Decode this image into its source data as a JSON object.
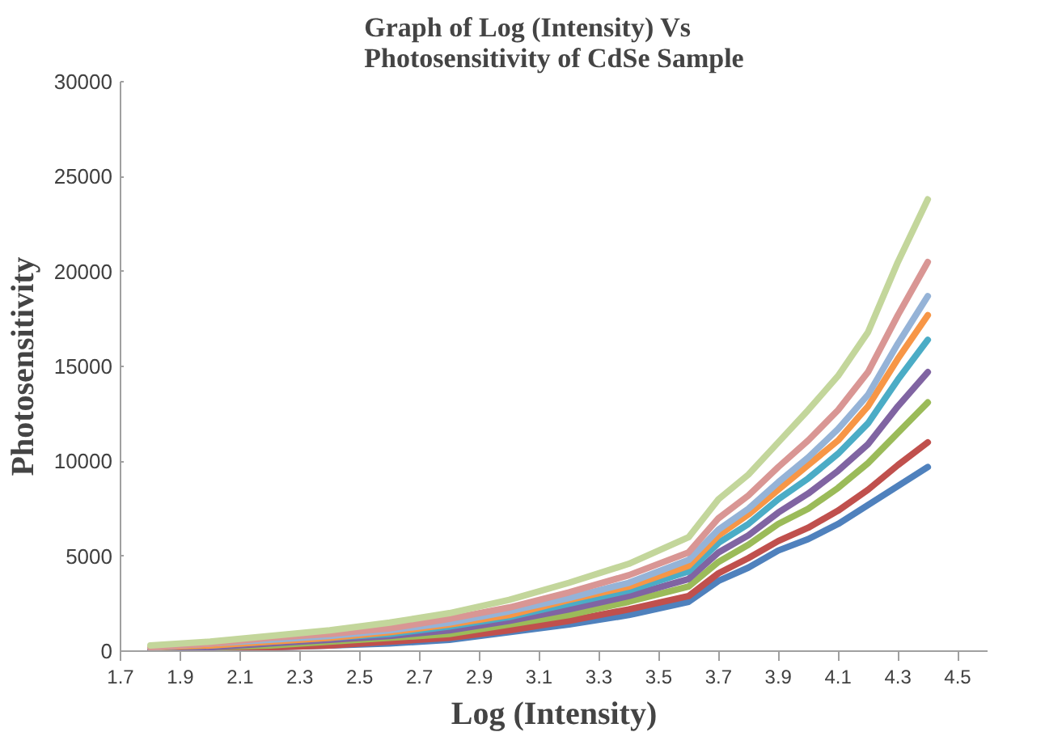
{
  "chart_data": {
    "type": "line",
    "title": "Graph of Log (Intensity) Vs\nPhotosensitivity of CdSe Sample",
    "xlabel": "Log (Intensity)",
    "ylabel": "Photosensitivity",
    "x": [
      1.8,
      2.0,
      2.2,
      2.4,
      2.6,
      2.8,
      3.0,
      3.2,
      3.4,
      3.6,
      3.7,
      3.8,
      3.9,
      4.0,
      4.1,
      4.2,
      4.3,
      4.4
    ],
    "series": [
      {
        "color": "#4f81bd",
        "values": [
          0,
          100,
          200,
          300,
          400,
          600,
          1000,
          1400,
          1900,
          2600,
          3700,
          4400,
          5300,
          5900,
          6700,
          7700,
          8700,
          9700
        ]
      },
      {
        "color": "#c0504d",
        "values": [
          100,
          100,
          200,
          300,
          500,
          700,
          1100,
          1600,
          2200,
          2900,
          4100,
          4900,
          5800,
          6500,
          7400,
          8500,
          9800,
          11000
        ]
      },
      {
        "color": "#9bbb59",
        "values": [
          100,
          200,
          300,
          500,
          700,
          900,
          1400,
          1900,
          2600,
          3400,
          4700,
          5600,
          6700,
          7500,
          8600,
          9900,
          11500,
          13100
        ]
      },
      {
        "color": "#8064a2",
        "values": [
          100,
          200,
          400,
          600,
          800,
          1100,
          1600,
          2200,
          2900,
          3800,
          5200,
          6100,
          7300,
          8300,
          9500,
          10900,
          12900,
          14700
        ]
      },
      {
        "color": "#4bacc6",
        "values": [
          200,
          300,
          500,
          700,
          900,
          1300,
          1800,
          2500,
          3200,
          4200,
          5700,
          6700,
          8000,
          9100,
          10400,
          12000,
          14300,
          16400
        ]
      },
      {
        "color": "#f79646",
        "values": [
          200,
          300,
          500,
          700,
          1000,
          1400,
          1900,
          2700,
          3400,
          4500,
          6100,
          7200,
          8500,
          9800,
          11100,
          12900,
          15400,
          17700
        ]
      },
      {
        "color": "#95b3d7",
        "values": [
          200,
          400,
          600,
          800,
          1100,
          1500,
          2100,
          2800,
          3600,
          4800,
          6400,
          7500,
          8900,
          10200,
          11700,
          13500,
          16200,
          18700
        ]
      },
      {
        "color": "#d99694",
        "values": [
          200,
          400,
          700,
          900,
          1200,
          1700,
          2300,
          3100,
          4000,
          5200,
          7000,
          8200,
          9700,
          11100,
          12700,
          14700,
          17700,
          20500
        ]
      },
      {
        "color": "#c3d69b",
        "values": [
          300,
          500,
          800,
          1100,
          1500,
          2000,
          2700,
          3600,
          4600,
          6000,
          8000,
          9300,
          11000,
          12700,
          14500,
          16800,
          20500,
          23800
        ]
      }
    ],
    "xlim": [
      1.7,
      4.6
    ],
    "xticks": [
      1.7,
      1.9,
      2.1,
      2.3,
      2.5,
      2.7,
      2.9,
      3.1,
      3.3,
      3.5,
      3.7,
      3.9,
      4.1,
      4.3,
      4.5
    ],
    "ylim": [
      0,
      30000
    ],
    "yticks": [
      0,
      5000,
      10000,
      15000,
      20000,
      25000,
      30000
    ],
    "grid": false,
    "marker": "none",
    "line_style": "solid"
  }
}
